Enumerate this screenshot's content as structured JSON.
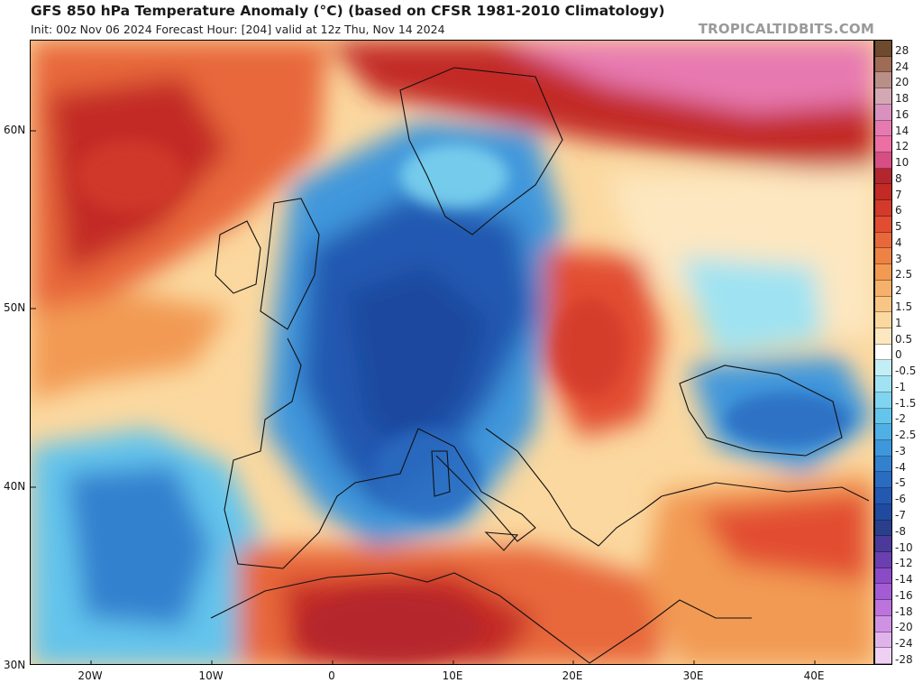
{
  "header": {
    "title": "GFS 850 hPa Temperature Anomaly (°C) (based on CFSR 1981-2010 Climatology)",
    "subtitle": "Init: 00z Nov 06 2024   Forecast Hour: [204]   valid at 12z Thu, Nov 14 2024",
    "watermark": "TROPICALTIDBITS.COM"
  },
  "map": {
    "variable": "850 hPa temperature anomaly",
    "units": "°C",
    "region": "Europe, North Africa and Middle East",
    "lat_range": [
      30,
      65
    ],
    "lon_range": [
      -25,
      45
    ],
    "lat_labels": [
      "60N",
      "50N",
      "40N",
      "30N"
    ],
    "lon_labels": [
      "20W",
      "10W",
      "0",
      "10E",
      "20E",
      "30E",
      "40E"
    ],
    "anomaly_regions": [
      {
        "name": "cold-core-france-germany-italy",
        "sign": "negative"
      },
      {
        "name": "cold-atlantic-iberia-west",
        "sign": "negative"
      },
      {
        "name": "cold-black-sea",
        "sign": "negative"
      },
      {
        "name": "warm-scandinavia-arctic",
        "sign": "positive"
      },
      {
        "name": "warm-atlantic-north",
        "sign": "positive"
      },
      {
        "name": "warm-balkans-hungary",
        "sign": "positive"
      },
      {
        "name": "warm-north-africa",
        "sign": "positive"
      },
      {
        "name": "warm-turkey-middle-east",
        "sign": "positive"
      }
    ],
    "colors": {
      "ocean_neutral": "#fde4b3",
      "warm_light": "#f6b36e",
      "warm_mid": "#e8683a",
      "warm_strong": "#c32a25",
      "warm_extreme": "#e779b1",
      "cold_light": "#9ad4ef",
      "cold_mid": "#3f8fd6",
      "cold_strong": "#2459b1",
      "cold_extreme": "#1c3f8d"
    }
  },
  "colorbar": {
    "labels": [
      "28",
      "24",
      "20",
      "18",
      "16",
      "14",
      "12",
      "10",
      "8",
      "7",
      "6",
      "5",
      "4",
      "3",
      "2.5",
      "2",
      "1.5",
      "1",
      "0.5",
      "0",
      "-0.5",
      "-1",
      "-1.5",
      "-2",
      "-2.5",
      "-3",
      "-4",
      "-5",
      "-6",
      "-7",
      "-8",
      "-10",
      "-12",
      "-14",
      "-16",
      "-18",
      "-20",
      "-24",
      "-28"
    ],
    "colors": [
      "#6e4a2f",
      "#9e6b55",
      "#b98f88",
      "#d4a7b4",
      "#d991bf",
      "#e779b1",
      "#ec6ea3",
      "#d74e82",
      "#b3262e",
      "#c32a25",
      "#d33a2b",
      "#e24d32",
      "#e8683a",
      "#ed8244",
      "#f29a52",
      "#f5b16b",
      "#f8c585",
      "#fbd89f",
      "#fde7c0",
      "#ffffff",
      "#c2eef6",
      "#9fe3f2",
      "#7fd5ef",
      "#63c4ec",
      "#4fb0e6",
      "#3f97db",
      "#3281cf",
      "#2a6cc1",
      "#2459b1",
      "#1f4a9f",
      "#2a3f8c",
      "#4b3a99",
      "#6b3fb0",
      "#8c4bc6",
      "#a35cd3",
      "#bc74dc",
      "#cf92e3",
      "#e0b4ea",
      "#eed1f2"
    ]
  }
}
